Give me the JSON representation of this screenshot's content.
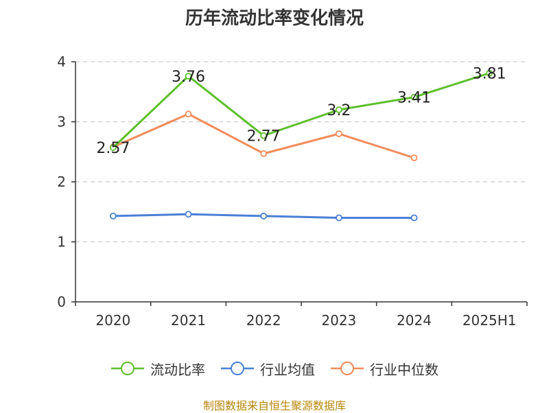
{
  "title": "历年流动比率变化情况",
  "source": "制图数据来自恒生聚源数据库",
  "chart_data": {
    "type": "line",
    "categories": [
      "2020",
      "2021",
      "2022",
      "2023",
      "2024",
      "2025H1"
    ],
    "ylim": [
      0,
      4
    ],
    "yticks": [
      "0",
      "1",
      "2",
      "3",
      "4"
    ],
    "grid": true,
    "legend_position": "bottom",
    "series": [
      {
        "name": "流动比率",
        "color": "#5cbf2a",
        "values": [
          2.57,
          3.76,
          2.77,
          3.2,
          3.41,
          3.81
        ],
        "labels": [
          "2.57",
          "3.76",
          "2.77",
          "3.2",
          "3.41",
          "3.81"
        ]
      },
      {
        "name": "行业均值",
        "color": "#4a7fd6",
        "values": [
          1.43,
          1.46,
          1.43,
          1.4,
          1.4,
          null
        ]
      },
      {
        "name": "行业中位数",
        "color": "#f08c5a",
        "values": [
          2.58,
          3.13,
          2.47,
          2.8,
          2.4,
          null
        ]
      }
    ]
  }
}
